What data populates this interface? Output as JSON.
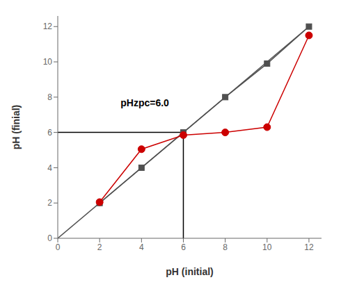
{
  "chart_data": {
    "type": "line",
    "xlabel": "pH (initial)",
    "ylabel": "pH (finial)",
    "xlim": [
      0,
      12.6
    ],
    "ylim": [
      0,
      12.6
    ],
    "xticks": [
      0,
      2,
      4,
      6,
      8,
      10,
      12
    ],
    "yticks": [
      0,
      2,
      4,
      6,
      8,
      10,
      12
    ],
    "grid": false,
    "annotations": [
      {
        "text": "pHzpc=6.0",
        "x": 3.0,
        "y": 7.5
      }
    ],
    "series": [
      {
        "x": [
          0,
          12
        ],
        "values": [
          0,
          12
        ],
        "color": "#505050",
        "line_style": "solid"
      },
      {
        "x": [
          2,
          4,
          6,
          8,
          10,
          12
        ],
        "values": [
          2,
          4,
          6,
          8,
          9.9,
          12
        ],
        "color": "#505050",
        "marker": "square",
        "line_style": "solid"
      },
      {
        "x": [
          2,
          4,
          6,
          8,
          10,
          12
        ],
        "values": [
          2.05,
          5.05,
          5.85,
          6.0,
          6.3,
          11.5
        ],
        "color": "#cc0000",
        "marker": "circle",
        "line_style": "solid"
      },
      {
        "x": [
          0,
          6
        ],
        "values": [
          6,
          6
        ],
        "color": "#000000",
        "line_style": "solid"
      },
      {
        "x": [
          6,
          6
        ],
        "values": [
          0,
          6
        ],
        "color": "#000000",
        "line_style": "solid"
      }
    ]
  }
}
